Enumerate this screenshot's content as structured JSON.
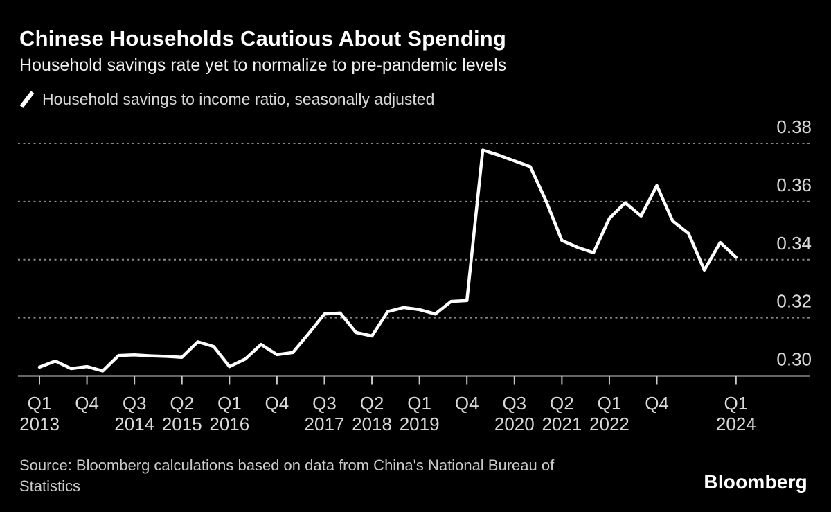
{
  "header": {
    "title": "Chinese Households Cautious About Spending",
    "subtitle": "Household savings rate yet to normalize to pre-pandemic levels"
  },
  "legend": {
    "label": "Household savings to income ratio, seasonally adjusted"
  },
  "footer": {
    "source_lines": [
      "Source: Bloomberg calculations based on data from China's National Bureau of",
      "Statistics"
    ],
    "brand": "Bloomberg"
  },
  "colors": {
    "background": "#000000",
    "line": "#ffffff",
    "grid": "#8a8a8a",
    "axis": "#c9c9c9",
    "tick_label": "#d9d9d9"
  },
  "chart_data": {
    "type": "line",
    "title": "Chinese Households Cautious About Spending",
    "subtitle": "Household savings rate yet to normalize to pre-pandemic levels",
    "legend_position": "top-left",
    "grid": "dotted-horizontal",
    "ylim": [
      0.295,
      0.385
    ],
    "y_ticks": [
      0.3,
      0.32,
      0.34,
      0.36,
      0.38
    ],
    "series": [
      {
        "name": "Household savings to income ratio, seasonally adjusted",
        "x": [
          "2013 Q1",
          "2013 Q2",
          "2013 Q3",
          "2013 Q4",
          "2014 Q1",
          "2014 Q2",
          "2014 Q3",
          "2014 Q4",
          "2015 Q1",
          "2015 Q2",
          "2015 Q3",
          "2015 Q4",
          "2016 Q1",
          "2016 Q2",
          "2016 Q3",
          "2016 Q4",
          "2017 Q1",
          "2017 Q2",
          "2017 Q3",
          "2017 Q4",
          "2018 Q1",
          "2018 Q2",
          "2018 Q3",
          "2018 Q4",
          "2019 Q1",
          "2019 Q2",
          "2019 Q3",
          "2019 Q4",
          "2020 Q1",
          "2020 Q2",
          "2020 Q3",
          "2020 Q4",
          "2021 Q1",
          "2021 Q2",
          "2021 Q3",
          "2021 Q4",
          "2022 Q1",
          "2022 Q2",
          "2022 Q3",
          "2022 Q4",
          "2023 Q1",
          "2023 Q2",
          "2023 Q3",
          "2023 Q4",
          "2024 Q1"
        ],
        "values": [
          0.303,
          0.3051,
          0.3025,
          0.3032,
          0.3017,
          0.307,
          0.3072,
          0.3069,
          0.3067,
          0.3064,
          0.3117,
          0.3101,
          0.3032,
          0.3058,
          0.3108,
          0.3073,
          0.308,
          0.3145,
          0.3213,
          0.3216,
          0.3149,
          0.3137,
          0.3221,
          0.3235,
          0.3228,
          0.3213,
          0.3256,
          0.3259,
          0.3777,
          0.376,
          0.374,
          0.372,
          0.3602,
          0.3466,
          0.3442,
          0.3424,
          0.3542,
          0.3596,
          0.355,
          0.3655,
          0.3533,
          0.349,
          0.3364,
          0.3459,
          0.3408
        ]
      }
    ],
    "x_ticks": [
      {
        "index": 0,
        "quarter": "Q1",
        "year": "2013"
      },
      {
        "index": 3,
        "quarter": "Q4"
      },
      {
        "index": 6,
        "quarter": "Q3",
        "year": "2014"
      },
      {
        "index": 9,
        "quarter": "Q2",
        "year": "2015"
      },
      {
        "index": 12,
        "quarter": "Q1",
        "year": "2016"
      },
      {
        "index": 15,
        "quarter": "Q4"
      },
      {
        "index": 18,
        "quarter": "Q3",
        "year": "2017"
      },
      {
        "index": 21,
        "quarter": "Q2",
        "year": "2018"
      },
      {
        "index": 24,
        "quarter": "Q1",
        "year": "2019"
      },
      {
        "index": 27,
        "quarter": "Q4"
      },
      {
        "index": 30,
        "quarter": "Q3",
        "year": "2020"
      },
      {
        "index": 33,
        "quarter": "Q2",
        "year": "2021"
      },
      {
        "index": 36,
        "quarter": "Q1",
        "year": "2022"
      },
      {
        "index": 39,
        "quarter": "Q4"
      },
      {
        "index": 44,
        "quarter": "Q1",
        "year": "2024"
      }
    ]
  }
}
